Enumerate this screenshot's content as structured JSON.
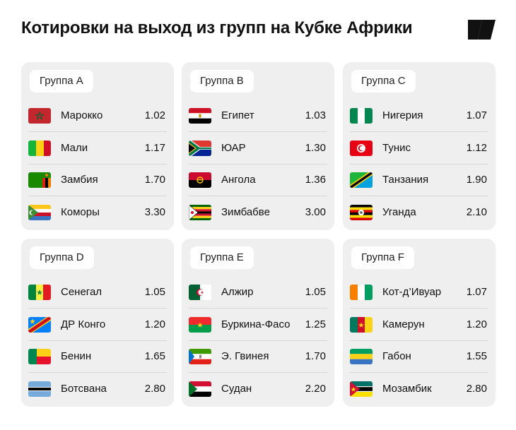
{
  "title": "Котировки на выход из групп на Кубке Африки",
  "groups": [
    {
      "label": "Группа A",
      "teams": [
        {
          "name": "Марокко",
          "odds": "1.02",
          "flag": "morocco-flag-icon"
        },
        {
          "name": "Мали",
          "odds": "1.17",
          "flag": "mali-flag-icon"
        },
        {
          "name": "Замбия",
          "odds": "1.70",
          "flag": "zambia-flag-icon"
        },
        {
          "name": "Коморы",
          "odds": "3.30",
          "flag": "comoros-flag-icon"
        }
      ]
    },
    {
      "label": "Группа B",
      "teams": [
        {
          "name": "Египет",
          "odds": "1.03",
          "flag": "egypt-flag-icon"
        },
        {
          "name": "ЮАР",
          "odds": "1.30",
          "flag": "south-africa-flag-icon"
        },
        {
          "name": "Ангола",
          "odds": "1.36",
          "flag": "angola-flag-icon"
        },
        {
          "name": "Зимбабве",
          "odds": "3.00",
          "flag": "zimbabwe-flag-icon"
        }
      ]
    },
    {
      "label": "Группа C",
      "teams": [
        {
          "name": "Нигерия",
          "odds": "1.07",
          "flag": "nigeria-flag-icon"
        },
        {
          "name": "Тунис",
          "odds": "1.12",
          "flag": "tunisia-flag-icon"
        },
        {
          "name": "Танзания",
          "odds": "1.90",
          "flag": "tanzania-flag-icon"
        },
        {
          "name": "Уганда",
          "odds": "2.10",
          "flag": "uganda-flag-icon"
        }
      ]
    },
    {
      "label": "Группа D",
      "teams": [
        {
          "name": "Сенегал",
          "odds": "1.05",
          "flag": "senegal-flag-icon"
        },
        {
          "name": "ДР Конго",
          "odds": "1.20",
          "flag": "dr-congo-flag-icon"
        },
        {
          "name": "Бенин",
          "odds": "1.65",
          "flag": "benin-flag-icon"
        },
        {
          "name": "Ботсвана",
          "odds": "2.80",
          "flag": "botswana-flag-icon"
        }
      ]
    },
    {
      "label": "Группа E",
      "teams": [
        {
          "name": "Алжир",
          "odds": "1.05",
          "flag": "algeria-flag-icon"
        },
        {
          "name": "Буркина-Фасо",
          "odds": "1.25",
          "flag": "burkina-faso-flag-icon"
        },
        {
          "name": "Э. Гвинея",
          "odds": "1.70",
          "flag": "equatorial-guinea-flag-icon"
        },
        {
          "name": "Судан",
          "odds": "2.20",
          "flag": "sudan-flag-icon"
        }
      ]
    },
    {
      "label": "Группа F",
      "teams": [
        {
          "name": "Кот-д’Ивуар",
          "odds": "1.07",
          "flag": "ivory-coast-flag-icon"
        },
        {
          "name": "Камерун",
          "odds": "1.20",
          "flag": "cameroon-flag-icon"
        },
        {
          "name": "Габон",
          "odds": "1.55",
          "flag": "gabon-flag-icon"
        },
        {
          "name": "Мозамбик",
          "odds": "2.80",
          "flag": "mozambique-flag-icon"
        }
      ]
    }
  ]
}
